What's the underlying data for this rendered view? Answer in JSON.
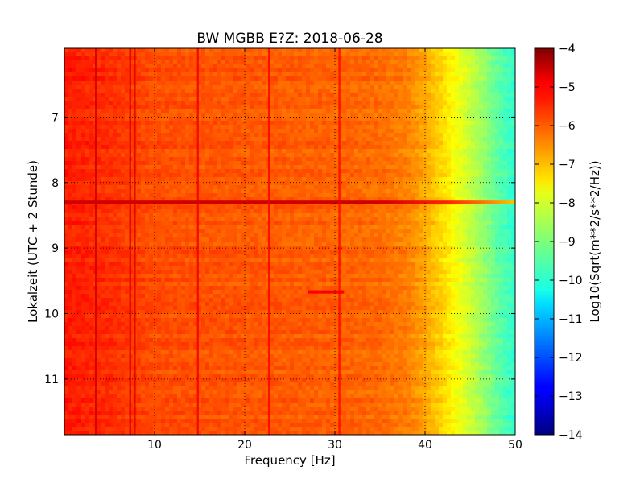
{
  "chart_data": {
    "type": "heatmap",
    "title": "BW MGBB E?Z: 2018-06-28",
    "xlabel": "Frequency [Hz]",
    "ylabel": "Lokalzeit (UTC + 2 Stunde)",
    "xlim": [
      0,
      50
    ],
    "ylim": [
      5.95,
      11.85
    ],
    "y_inverted": true,
    "x_ticks": [
      10,
      20,
      30,
      40,
      50
    ],
    "x_tick_labels": [
      "10",
      "20",
      "30",
      "40",
      "50"
    ],
    "y_ticks": [
      7,
      8,
      9,
      10,
      11
    ],
    "y_tick_labels": [
      "7",
      "8",
      "9",
      "10",
      "11"
    ],
    "grid": true,
    "colormap": "jet",
    "colorbar": {
      "label": "Log10(Sqrt(m**2/s**2/Hz))",
      "range": [
        -14,
        -4
      ],
      "ticks": [
        -4,
        -5,
        -6,
        -7,
        -8,
        -9,
        -10,
        -11,
        -12,
        -13,
        -14
      ],
      "tick_labels": [
        "−4",
        "−5",
        "−6",
        "−7",
        "−8",
        "−9",
        "−10",
        "−11",
        "−12",
        "−13",
        "−14"
      ]
    },
    "spectral_profile": {
      "frequency_hz": [
        0,
        5,
        10,
        20,
        30,
        35,
        38,
        40,
        42,
        44,
        46,
        48,
        50
      ],
      "log_amplitude": [
        -5.5,
        -5.7,
        -6.0,
        -6.1,
        -6.2,
        -6.3,
        -6.5,
        -6.9,
        -7.4,
        -8.0,
        -8.6,
        -9.3,
        -9.8
      ]
    },
    "persistent_lines_hz": [
      3.5,
      7.3,
      7.8,
      14.8,
      22.7,
      30.5
    ],
    "transient_events": [
      {
        "time": 8.3,
        "freq_range_hz": [
          0,
          50
        ],
        "log_amplitude": -4.8
      },
      {
        "time": 9.67,
        "freq_range_hz": [
          27,
          31
        ],
        "log_amplitude": -5.2
      }
    ]
  }
}
